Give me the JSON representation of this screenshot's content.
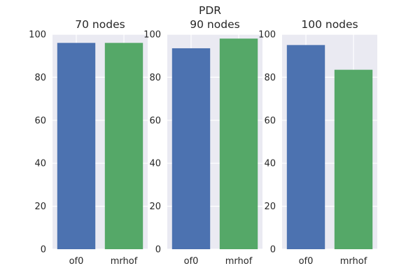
{
  "chart_data": {
    "type": "bar",
    "title": "PDR",
    "categories": [
      "of0",
      "mrhof"
    ],
    "ylim": [
      0,
      100
    ],
    "yticks": [
      0,
      20,
      40,
      60,
      80,
      100
    ],
    "grid": true,
    "colors": [
      "#4c72b0",
      "#55a868"
    ],
    "subplots": [
      {
        "title": "70 nodes",
        "values": [
          96,
          96
        ]
      },
      {
        "title": "90 nodes",
        "values": [
          93.5,
          98
        ]
      },
      {
        "title": "100 nodes",
        "values": [
          95,
          83.5
        ]
      }
    ]
  }
}
